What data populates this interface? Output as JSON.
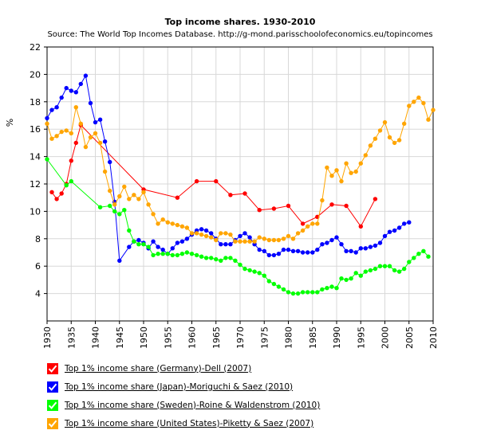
{
  "chart_data": {
    "type": "line",
    "title": "Top income shares. 1930-2010",
    "subtitle": "Source: The World Top Incomes Database. http://g-mond.parisschoolofeconomics.eu/topincomes",
    "xlabel": "",
    "ylabel": "%",
    "xlim": [
      1930,
      2010
    ],
    "ylim": [
      2,
      22
    ],
    "xticks": [
      1930,
      1935,
      1940,
      1945,
      1950,
      1955,
      1960,
      1965,
      1970,
      1975,
      1980,
      1985,
      1990,
      1995,
      2000,
      2005,
      2010
    ],
    "yticks": [
      4,
      6,
      8,
      10,
      12,
      14,
      16,
      18,
      20,
      22
    ],
    "grid": true,
    "legend_position": "bottom",
    "series": [
      {
        "name": "Top 1% income share (Germany)-Dell  (2007)",
        "color": "#ff0000",
        "points": [
          [
            1931,
            11.4
          ],
          [
            1932,
            10.9
          ],
          [
            1933,
            11.3
          ],
          [
            1934,
            12.0
          ],
          [
            1935,
            13.7
          ],
          [
            1936,
            15.0
          ],
          [
            1937,
            16.3
          ],
          [
            1950,
            11.6
          ],
          [
            1957,
            11.0
          ],
          [
            1961,
            12.2
          ],
          [
            1965,
            12.2
          ],
          [
            1968,
            11.2
          ],
          [
            1971,
            11.3
          ],
          [
            1974,
            10.1
          ],
          [
            1977,
            10.2
          ],
          [
            1980,
            10.4
          ],
          [
            1983,
            9.1
          ],
          [
            1986,
            9.6
          ],
          [
            1989,
            10.5
          ],
          [
            1992,
            10.4
          ],
          [
            1995,
            8.9
          ],
          [
            1998,
            10.9
          ]
        ]
      },
      {
        "name": "Top 1% income share (Japan)-Moriguchi & Saez (2010)",
        "color": "#0000ff",
        "points": [
          [
            1930,
            16.8
          ],
          [
            1931,
            17.4
          ],
          [
            1932,
            17.6
          ],
          [
            1933,
            18.3
          ],
          [
            1934,
            19.0
          ],
          [
            1935,
            18.8
          ],
          [
            1936,
            18.7
          ],
          [
            1937,
            19.3
          ],
          [
            1938,
            19.9
          ],
          [
            1939,
            17.9
          ],
          [
            1940,
            16.5
          ],
          [
            1941,
            16.7
          ],
          [
            1942,
            15.1
          ],
          [
            1943,
            13.6
          ],
          [
            1944,
            10.7
          ],
          [
            1945,
            6.4
          ],
          [
            1947,
            7.4
          ],
          [
            1948,
            7.8
          ],
          [
            1949,
            7.9
          ],
          [
            1950,
            7.7
          ],
          [
            1951,
            7.3
          ],
          [
            1952,
            7.8
          ],
          [
            1953,
            7.4
          ],
          [
            1954,
            7.2
          ],
          [
            1955,
            6.9
          ],
          [
            1956,
            7.3
          ],
          [
            1957,
            7.7
          ],
          [
            1958,
            7.8
          ],
          [
            1959,
            8.0
          ],
          [
            1960,
            8.3
          ],
          [
            1961,
            8.6
          ],
          [
            1962,
            8.7
          ],
          [
            1963,
            8.6
          ],
          [
            1964,
            8.4
          ],
          [
            1965,
            8.0
          ],
          [
            1966,
            7.6
          ],
          [
            1967,
            7.6
          ],
          [
            1968,
            7.6
          ],
          [
            1969,
            7.9
          ],
          [
            1970,
            8.2
          ],
          [
            1971,
            8.4
          ],
          [
            1972,
            8.1
          ],
          [
            1973,
            7.6
          ],
          [
            1974,
            7.2
          ],
          [
            1975,
            7.1
          ],
          [
            1976,
            6.8
          ],
          [
            1977,
            6.8
          ],
          [
            1978,
            6.9
          ],
          [
            1979,
            7.2
          ],
          [
            1980,
            7.2
          ],
          [
            1981,
            7.1
          ],
          [
            1982,
            7.1
          ],
          [
            1983,
            7.0
          ],
          [
            1984,
            7.0
          ],
          [
            1985,
            7.0
          ],
          [
            1986,
            7.2
          ],
          [
            1987,
            7.6
          ],
          [
            1988,
            7.7
          ],
          [
            1989,
            7.9
          ],
          [
            1990,
            8.1
          ],
          [
            1991,
            7.6
          ],
          [
            1992,
            7.1
          ],
          [
            1993,
            7.1
          ],
          [
            1994,
            7.0
          ],
          [
            1995,
            7.3
          ],
          [
            1996,
            7.3
          ],
          [
            1997,
            7.4
          ],
          [
            1998,
            7.5
          ],
          [
            1999,
            7.7
          ],
          [
            2000,
            8.2
          ],
          [
            2001,
            8.5
          ],
          [
            2002,
            8.6
          ],
          [
            2003,
            8.8
          ],
          [
            2004,
            9.1
          ],
          [
            2005,
            9.2
          ]
        ]
      },
      {
        "name": "Top 1% income share (Sweden)-Roine & Waldenstrom (2010)",
        "color": "#00ff00",
        "points": [
          [
            1930,
            13.8
          ],
          [
            1934,
            11.9
          ],
          [
            1935,
            12.2
          ],
          [
            1941,
            10.3
          ],
          [
            1943,
            10.4
          ],
          [
            1944,
            10.0
          ],
          [
            1945,
            9.8
          ],
          [
            1946,
            10.1
          ],
          [
            1947,
            8.6
          ],
          [
            1948,
            7.8
          ],
          [
            1949,
            7.6
          ],
          [
            1950,
            7.6
          ],
          [
            1951,
            7.4
          ],
          [
            1952,
            6.8
          ],
          [
            1953,
            6.9
          ],
          [
            1954,
            6.9
          ],
          [
            1955,
            6.9
          ],
          [
            1956,
            6.8
          ],
          [
            1957,
            6.8
          ],
          [
            1958,
            6.9
          ],
          [
            1959,
            7.0
          ],
          [
            1960,
            6.9
          ],
          [
            1961,
            6.8
          ],
          [
            1962,
            6.7
          ],
          [
            1963,
            6.6
          ],
          [
            1964,
            6.6
          ],
          [
            1965,
            6.5
          ],
          [
            1966,
            6.4
          ],
          [
            1967,
            6.6
          ],
          [
            1968,
            6.6
          ],
          [
            1969,
            6.4
          ],
          [
            1970,
            6.1
          ],
          [
            1971,
            5.8
          ],
          [
            1972,
            5.7
          ],
          [
            1973,
            5.6
          ],
          [
            1974,
            5.5
          ],
          [
            1975,
            5.3
          ],
          [
            1976,
            4.9
          ],
          [
            1977,
            4.7
          ],
          [
            1978,
            4.5
          ],
          [
            1979,
            4.3
          ],
          [
            1980,
            4.1
          ],
          [
            1981,
            4.0
          ],
          [
            1982,
            4.0
          ],
          [
            1983,
            4.1
          ],
          [
            1984,
            4.1
          ],
          [
            1985,
            4.1
          ],
          [
            1986,
            4.1
          ],
          [
            1987,
            4.3
          ],
          [
            1988,
            4.4
          ],
          [
            1989,
            4.5
          ],
          [
            1990,
            4.4
          ],
          [
            1991,
            5.1
          ],
          [
            1992,
            5.0
          ],
          [
            1993,
            5.1
          ],
          [
            1994,
            5.5
          ],
          [
            1995,
            5.3
          ],
          [
            1996,
            5.6
          ],
          [
            1997,
            5.7
          ],
          [
            1998,
            5.8
          ],
          [
            1999,
            6.0
          ],
          [
            2000,
            6.0
          ],
          [
            2001,
            6.0
          ],
          [
            2002,
            5.7
          ],
          [
            2003,
            5.6
          ],
          [
            2004,
            5.8
          ],
          [
            2005,
            6.3
          ],
          [
            2006,
            6.6
          ],
          [
            2007,
            6.9
          ],
          [
            2008,
            7.1
          ],
          [
            2009,
            6.7
          ]
        ]
      },
      {
        "name": "Top 1% income share (United States)-Piketty & Saez (2007)",
        "color": "#ffa500",
        "points": [
          [
            1930,
            16.4
          ],
          [
            1931,
            15.3
          ],
          [
            1932,
            15.5
          ],
          [
            1933,
            15.8
          ],
          [
            1934,
            15.9
          ],
          [
            1935,
            15.7
          ],
          [
            1936,
            17.6
          ],
          [
            1937,
            16.4
          ],
          [
            1938,
            14.7
          ],
          [
            1939,
            15.4
          ],
          [
            1940,
            15.7
          ],
          [
            1941,
            15.0
          ],
          [
            1942,
            12.9
          ],
          [
            1943,
            11.5
          ],
          [
            1944,
            10.5
          ],
          [
            1945,
            11.1
          ],
          [
            1946,
            11.8
          ],
          [
            1947,
            10.9
          ],
          [
            1948,
            11.2
          ],
          [
            1949,
            10.9
          ],
          [
            1950,
            11.4
          ],
          [
            1951,
            10.5
          ],
          [
            1952,
            9.8
          ],
          [
            1953,
            9.1
          ],
          [
            1954,
            9.4
          ],
          [
            1955,
            9.2
          ],
          [
            1956,
            9.1
          ],
          [
            1957,
            9.0
          ],
          [
            1958,
            8.9
          ],
          [
            1959,
            8.8
          ],
          [
            1960,
            8.4
          ],
          [
            1961,
            8.4
          ],
          [
            1962,
            8.3
          ],
          [
            1963,
            8.2
          ],
          [
            1964,
            8.1
          ],
          [
            1965,
            7.9
          ],
          [
            1966,
            8.4
          ],
          [
            1967,
            8.4
          ],
          [
            1968,
            8.3
          ],
          [
            1969,
            7.8
          ],
          [
            1970,
            7.8
          ],
          [
            1971,
            7.8
          ],
          [
            1972,
            7.8
          ],
          [
            1973,
            7.8
          ],
          [
            1974,
            8.1
          ],
          [
            1975,
            8.0
          ],
          [
            1976,
            7.9
          ],
          [
            1977,
            7.9
          ],
          [
            1978,
            7.9
          ],
          [
            1979,
            8.0
          ],
          [
            1980,
            8.2
          ],
          [
            1981,
            8.0
          ],
          [
            1982,
            8.4
          ],
          [
            1983,
            8.6
          ],
          [
            1984,
            8.9
          ],
          [
            1985,
            9.1
          ],
          [
            1986,
            9.1
          ],
          [
            1987,
            10.8
          ],
          [
            1988,
            13.2
          ],
          [
            1989,
            12.6
          ],
          [
            1990,
            13.0
          ],
          [
            1991,
            12.2
          ],
          [
            1992,
            13.5
          ],
          [
            1993,
            12.8
          ],
          [
            1994,
            12.9
          ],
          [
            1995,
            13.5
          ],
          [
            1996,
            14.1
          ],
          [
            1997,
            14.8
          ],
          [
            1998,
            15.3
          ],
          [
            1999,
            15.9
          ],
          [
            2000,
            16.5
          ],
          [
            2001,
            15.4
          ],
          [
            2002,
            15.0
          ],
          [
            2003,
            15.2
          ],
          [
            2004,
            16.4
          ],
          [
            2005,
            17.7
          ],
          [
            2006,
            18.0
          ],
          [
            2007,
            18.3
          ],
          [
            2008,
            17.9
          ],
          [
            2009,
            16.7
          ],
          [
            2010,
            17.4
          ]
        ]
      }
    ]
  }
}
